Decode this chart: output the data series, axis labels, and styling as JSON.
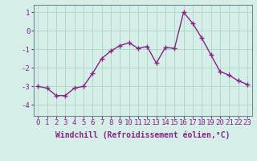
{
  "x": [
    0,
    1,
    2,
    3,
    4,
    5,
    6,
    7,
    8,
    9,
    10,
    11,
    12,
    13,
    14,
    15,
    16,
    17,
    18,
    19,
    20,
    21,
    22,
    23
  ],
  "y": [
    -3.0,
    -3.1,
    -3.5,
    -3.5,
    -3.1,
    -3.0,
    -2.3,
    -1.5,
    -1.1,
    -0.8,
    -0.65,
    -0.95,
    -0.85,
    -1.75,
    -0.9,
    -0.95,
    1.0,
    0.4,
    -0.4,
    -1.3,
    -2.2,
    -2.4,
    -2.7,
    -2.9
  ],
  "line_color": "#882288",
  "marker": "+",
  "markersize": 4,
  "linewidth": 1.0,
  "markeredgewidth": 1.0,
  "xlabel": "Windchill (Refroidissement éolien,°C)",
  "xlabel_fontsize": 7,
  "xtick_labels": [
    "0",
    "1",
    "2",
    "3",
    "4",
    "5",
    "6",
    "7",
    "8",
    "9",
    "10",
    "11",
    "12",
    "13",
    "14",
    "15",
    "16",
    "17",
    "18",
    "19",
    "20",
    "21",
    "22",
    "23"
  ],
  "ytick_values": [
    -4,
    -3,
    -2,
    -1,
    0,
    1
  ],
  "ylim": [
    -4.6,
    1.4
  ],
  "xlim": [
    -0.5,
    23.5
  ],
  "bg_color": "#d5eee8",
  "grid_color": "#b0d8cc",
  "tick_fontsize": 6.5,
  "tick_color": "#882288",
  "label_color": "#882288"
}
